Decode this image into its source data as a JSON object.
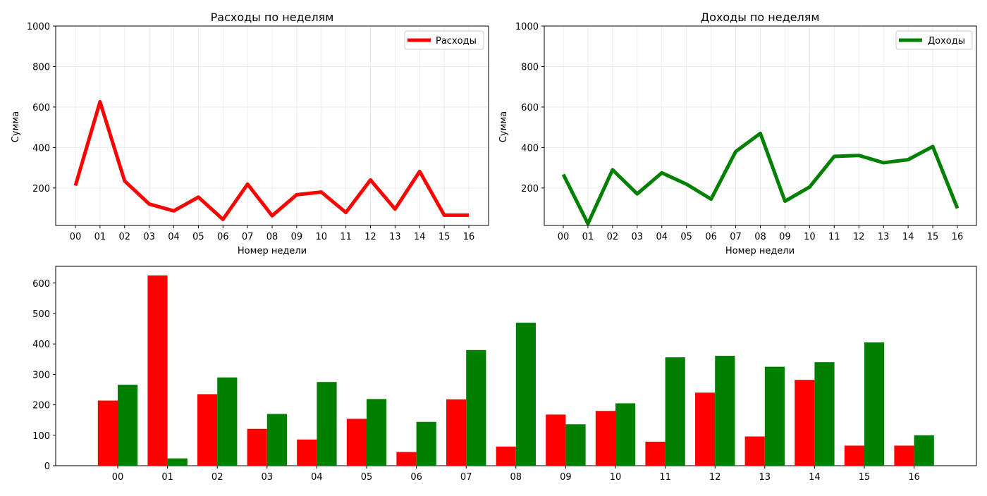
{
  "colors": {
    "expenses": "#ff0000",
    "income": "#008000",
    "grid": "#e8e8e8",
    "axis": "#000000"
  },
  "chart_data": [
    {
      "type": "line",
      "title": "Расходы по неделям",
      "xlabel": "Номер недели",
      "ylabel": "Сумма",
      "categories": [
        "00",
        "01",
        "02",
        "03",
        "04",
        "05",
        "06",
        "07",
        "08",
        "09",
        "10",
        "11",
        "12",
        "13",
        "14",
        "15",
        "16"
      ],
      "series": [
        {
          "name": "Расходы",
          "color": "#ff0000",
          "values": [
            212,
            626,
            235,
            121,
            87,
            155,
            45,
            219,
            63,
            167,
            180,
            79,
            240,
            96,
            282,
            66,
            66
          ]
        }
      ],
      "ylim": [
        15,
        1000
      ],
      "yticks": [
        200,
        400,
        600,
        800,
        1000
      ],
      "grid": true,
      "legend": "top-right"
    },
    {
      "type": "line",
      "title": "Доходы по неделям",
      "xlabel": "Номер недели",
      "ylabel": "Сумма",
      "categories": [
        "00",
        "01",
        "02",
        "03",
        "04",
        "05",
        "06",
        "07",
        "08",
        "09",
        "10",
        "11",
        "12",
        "13",
        "14",
        "15",
        "16"
      ],
      "series": [
        {
          "name": "Доходы",
          "color": "#008000",
          "values": [
            267,
            24,
            290,
            171,
            275,
            219,
            145,
            380,
            470,
            135,
            205,
            356,
            361,
            325,
            340,
            405,
            100
          ]
        }
      ],
      "ylim": [
        15,
        1000
      ],
      "yticks": [
        200,
        400,
        600,
        800,
        1000
      ],
      "grid": true,
      "legend": "top-right"
    },
    {
      "type": "bar",
      "title": "",
      "xlabel": "",
      "ylabel": "",
      "categories": [
        "00",
        "01",
        "02",
        "03",
        "04",
        "05",
        "06",
        "07",
        "08",
        "09",
        "10",
        "11",
        "12",
        "13",
        "14",
        "15",
        "16"
      ],
      "series": [
        {
          "color": "#ff0000",
          "values": [
            214,
            625,
            235,
            121,
            86,
            154,
            45,
            218,
            63,
            168,
            180,
            79,
            240,
            96,
            282,
            66,
            66
          ]
        },
        {
          "color": "#008000",
          "values": [
            266,
            24,
            290,
            170,
            275,
            219,
            144,
            380,
            470,
            136,
            205,
            356,
            361,
            325,
            340,
            405,
            100
          ]
        }
      ],
      "ylim": [
        0,
        655
      ],
      "yticks": [
        0,
        100,
        200,
        300,
        400,
        500,
        600
      ],
      "grid": false,
      "legend": "none"
    }
  ]
}
